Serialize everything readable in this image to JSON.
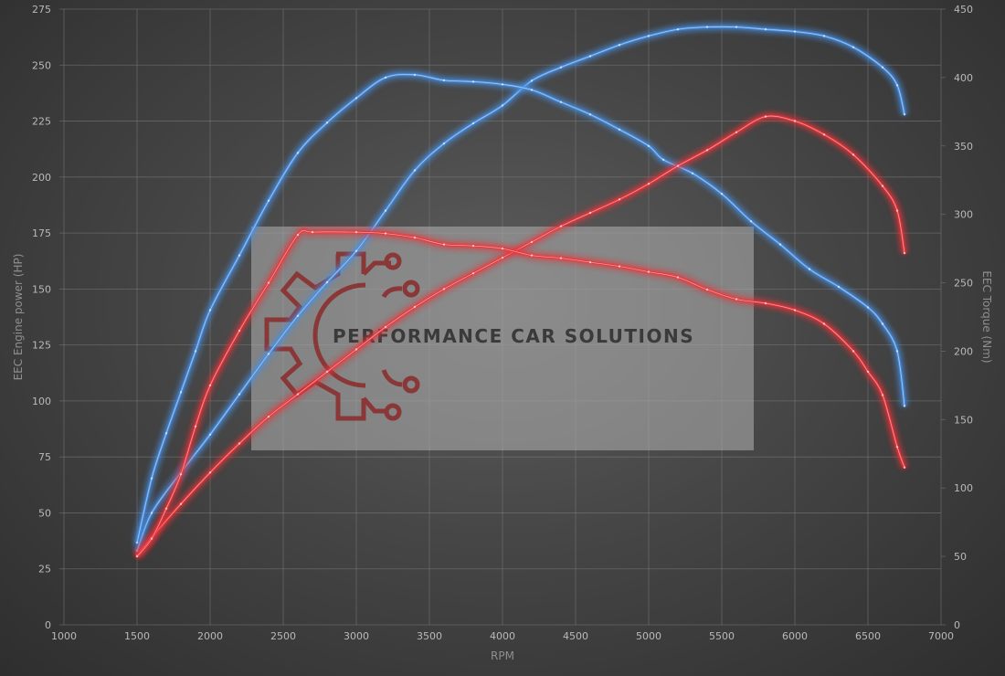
{
  "chart_data": {
    "type": "line",
    "xlabel": "RPM",
    "ylabel_left": "EEC Engine power (HP)",
    "ylabel_right": "EEC Torque (Nm)",
    "xlim": [
      1000,
      7000
    ],
    "ylim_left": [
      0,
      275
    ],
    "ylim_right": [
      0,
      450
    ],
    "x_ticks": [
      "1000",
      "1500",
      "2000",
      "2500",
      "3000",
      "3500",
      "4000",
      "4500",
      "5000",
      "5500",
      "6000",
      "6500",
      "7000"
    ],
    "y_left_ticks": [
      "0",
      "25",
      "50",
      "75",
      "100",
      "125",
      "150",
      "175",
      "200",
      "225",
      "250",
      "275"
    ],
    "y_right_ticks": [
      "0",
      "50",
      "100",
      "150",
      "200",
      "250",
      "300",
      "350",
      "400",
      "450"
    ],
    "grid": true,
    "series": [
      {
        "id": "tuned-power",
        "color": "#4a90e2",
        "axis": "left",
        "points": [
          [
            1500,
            33
          ],
          [
            1600,
            50
          ],
          [
            1800,
            68
          ],
          [
            2000,
            85
          ],
          [
            2200,
            103
          ],
          [
            2400,
            121
          ],
          [
            2600,
            138
          ],
          [
            2800,
            153
          ],
          [
            3000,
            167
          ],
          [
            3200,
            185
          ],
          [
            3400,
            203
          ],
          [
            3600,
            215
          ],
          [
            3800,
            224
          ],
          [
            4000,
            232
          ],
          [
            4200,
            243
          ],
          [
            4400,
            249
          ],
          [
            4600,
            254
          ],
          [
            4800,
            259
          ],
          [
            5000,
            263
          ],
          [
            5200,
            266
          ],
          [
            5400,
            267
          ],
          [
            5600,
            267
          ],
          [
            5800,
            266
          ],
          [
            6000,
            265
          ],
          [
            6200,
            263
          ],
          [
            6400,
            258
          ],
          [
            6600,
            249
          ],
          [
            6700,
            241
          ],
          [
            6750,
            228
          ]
        ]
      },
      {
        "id": "tuned-torque",
        "color": "#4a90e2",
        "axis": "right",
        "points": [
          [
            1500,
            60
          ],
          [
            1600,
            107
          ],
          [
            1700,
            140
          ],
          [
            1800,
            170
          ],
          [
            1900,
            200
          ],
          [
            2000,
            230
          ],
          [
            2200,
            270
          ],
          [
            2400,
            310
          ],
          [
            2600,
            345
          ],
          [
            2800,
            367
          ],
          [
            3000,
            385
          ],
          [
            3200,
            400
          ],
          [
            3400,
            402
          ],
          [
            3600,
            398
          ],
          [
            3800,
            397
          ],
          [
            4000,
            395
          ],
          [
            4200,
            391
          ],
          [
            4400,
            382
          ],
          [
            4600,
            373
          ],
          [
            4800,
            362
          ],
          [
            5000,
            350
          ],
          [
            5100,
            340
          ],
          [
            5300,
            330
          ],
          [
            5500,
            315
          ],
          [
            5700,
            295
          ],
          [
            5900,
            278
          ],
          [
            6100,
            260
          ],
          [
            6300,
            247
          ],
          [
            6500,
            232
          ],
          [
            6600,
            220
          ],
          [
            6700,
            200
          ],
          [
            6750,
            160
          ]
        ]
      },
      {
        "id": "stock-power",
        "color": "#e8343a",
        "axis": "left",
        "points": [
          [
            1500,
            31
          ],
          [
            1600,
            39
          ],
          [
            1800,
            54
          ],
          [
            2000,
            68
          ],
          [
            2200,
            81
          ],
          [
            2400,
            93
          ],
          [
            2600,
            103
          ],
          [
            2800,
            113
          ],
          [
            3000,
            123
          ],
          [
            3200,
            133
          ],
          [
            3400,
            142
          ],
          [
            3600,
            150
          ],
          [
            3800,
            157
          ],
          [
            4000,
            164
          ],
          [
            4200,
            171
          ],
          [
            4400,
            178
          ],
          [
            4600,
            184
          ],
          [
            4800,
            190
          ],
          [
            5000,
            197
          ],
          [
            5200,
            205
          ],
          [
            5400,
            212
          ],
          [
            5600,
            220
          ],
          [
            5800,
            227
          ],
          [
            6000,
            225
          ],
          [
            6200,
            219
          ],
          [
            6400,
            210
          ],
          [
            6600,
            196
          ],
          [
            6700,
            185
          ],
          [
            6750,
            166
          ]
        ]
      },
      {
        "id": "stock-torque",
        "color": "#e8343a",
        "axis": "right",
        "points": [
          [
            1500,
            50
          ],
          [
            1600,
            63
          ],
          [
            1700,
            85
          ],
          [
            1800,
            110
          ],
          [
            1900,
            145
          ],
          [
            2000,
            175
          ],
          [
            2200,
            215
          ],
          [
            2400,
            250
          ],
          [
            2600,
            285
          ],
          [
            2700,
            287
          ],
          [
            3000,
            287
          ],
          [
            3200,
            286
          ],
          [
            3400,
            283
          ],
          [
            3600,
            278
          ],
          [
            3800,
            277
          ],
          [
            4000,
            275
          ],
          [
            4200,
            270
          ],
          [
            4400,
            268
          ],
          [
            4600,
            265
          ],
          [
            4800,
            262
          ],
          [
            5000,
            258
          ],
          [
            5200,
            254
          ],
          [
            5400,
            245
          ],
          [
            5600,
            238
          ],
          [
            5800,
            235
          ],
          [
            6000,
            230
          ],
          [
            6200,
            220
          ],
          [
            6400,
            200
          ],
          [
            6500,
            185
          ],
          [
            6600,
            168
          ],
          [
            6700,
            130
          ],
          [
            6750,
            115
          ]
        ]
      }
    ]
  },
  "watermark": {
    "text": "PERFORMANCE CAR SOLUTIONS",
    "icon": "gear-circuit-logo-icon",
    "icon_color": "#7a2020",
    "text_color": "#3b3b3b"
  }
}
